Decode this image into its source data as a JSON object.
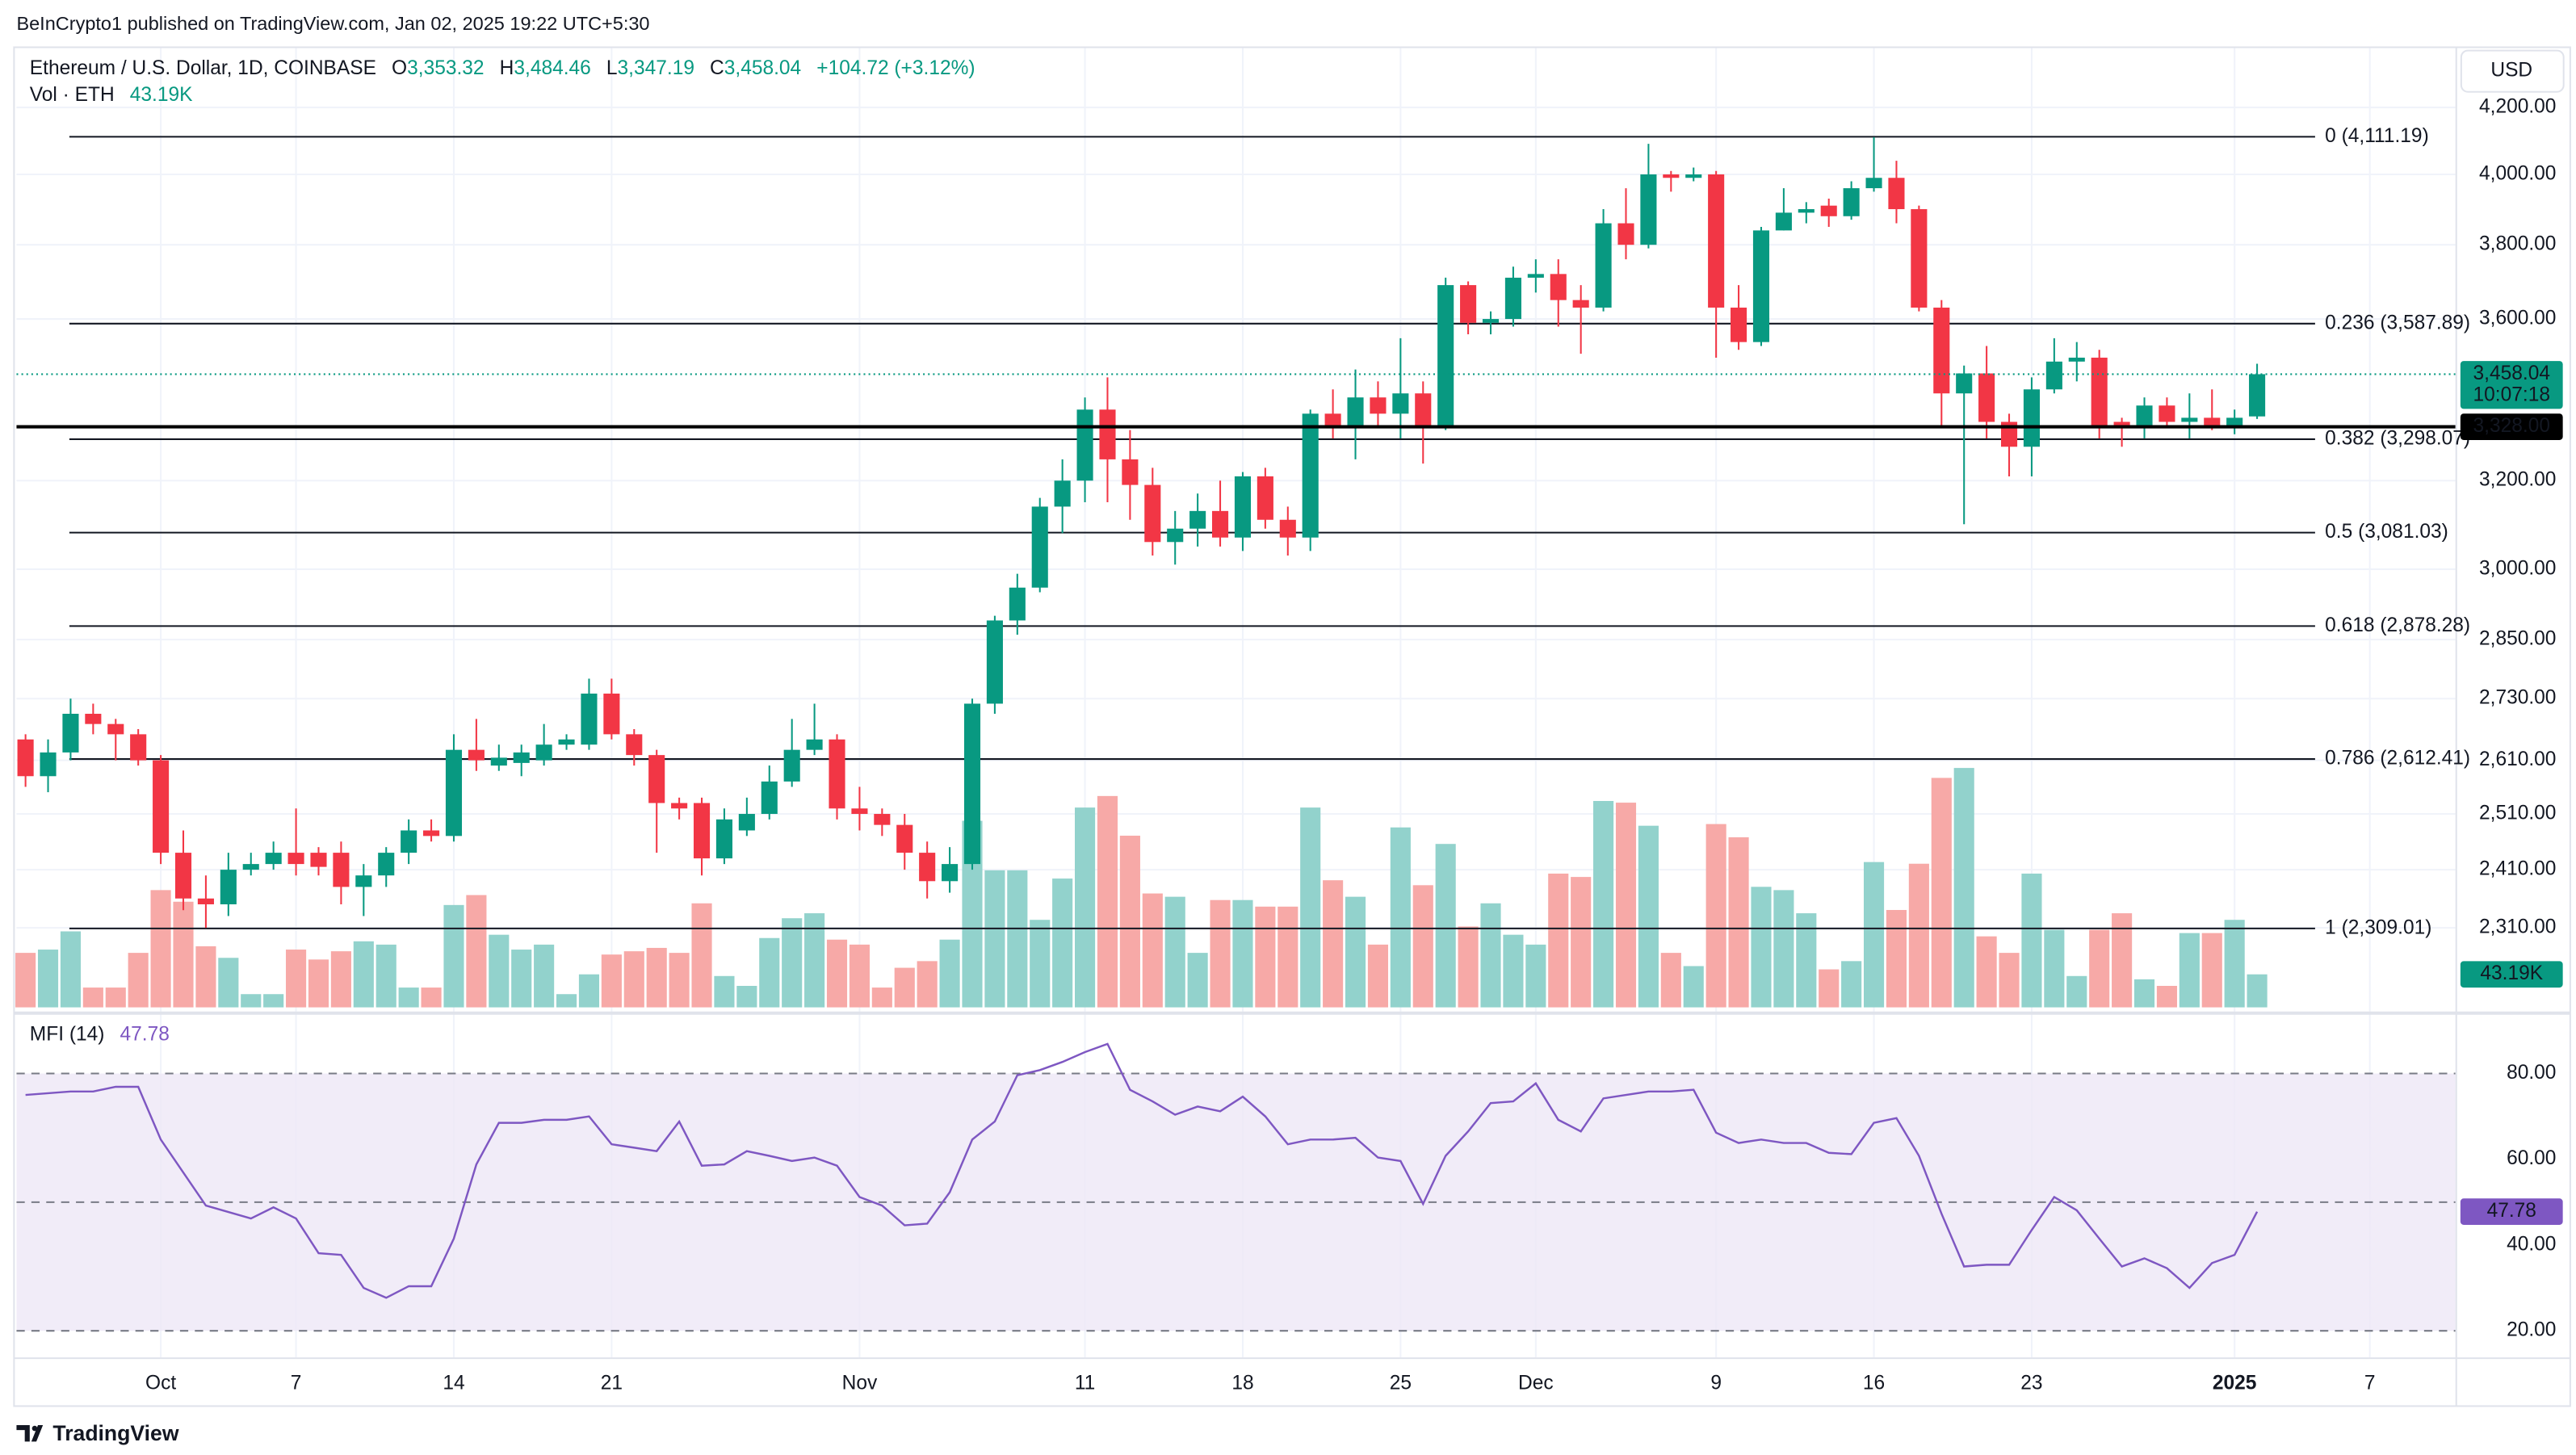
{
  "header": {
    "attribution": "BeInCrypto1 published on TradingView.com, Jan 02, 2025 19:22 UTC+5:30",
    "currency": "USD"
  },
  "chart_data": [
    {
      "type": "candlestick",
      "title": "Ethereum / U.S. Dollar, 1D, COINBASE",
      "legend": {
        "o": "O",
        "open": "3,353.32",
        "h": "H",
        "high": "3,484.46",
        "l": "L",
        "low": "3,347.19",
        "c": "C",
        "close": "3,458.04",
        "change": "+104.72 (+3.12%)"
      },
      "up_color": "#089981",
      "down_color": "#f23645",
      "log_scale": true,
      "grid": true,
      "x": [
        0,
        1,
        2,
        3,
        4,
        5,
        6,
        7,
        8,
        9,
        10,
        11,
        12,
        13,
        14,
        15,
        16,
        17,
        18,
        19,
        20,
        21,
        22,
        23,
        24,
        25,
        26,
        27,
        28,
        29,
        30,
        31,
        32,
        33,
        34,
        35,
        36,
        37,
        38,
        39,
        40,
        41,
        42,
        43,
        44,
        45,
        46,
        47,
        48,
        49,
        50,
        51,
        52,
        53,
        54,
        55,
        56,
        57,
        58,
        59,
        60,
        61,
        62,
        63,
        64,
        65,
        66,
        67,
        68,
        69,
        70,
        71,
        72,
        73,
        74,
        75,
        76,
        77,
        78,
        79,
        80,
        81,
        82,
        83,
        84,
        85,
        86,
        87,
        88,
        89,
        90,
        91,
        92,
        93,
        94,
        95,
        96,
        97,
        98,
        99
      ],
      "open": [
        2650,
        2580,
        2625,
        2700,
        2680,
        2660,
        2610,
        2440,
        2360,
        2350,
        2410,
        2420,
        2440,
        2440,
        2440,
        2380,
        2400,
        2440,
        2480,
        2470,
        2630,
        2600,
        2605,
        2610,
        2640,
        2640,
        2740,
        2660,
        2620,
        2530,
        2530,
        2430,
        2480,
        2510,
        2570,
        2630,
        2650,
        2520,
        2510,
        2490,
        2440,
        2390,
        2420,
        2720,
        2890,
        2960,
        3140,
        3200,
        3370,
        3250,
        3190,
        3060,
        3090,
        3130,
        3070,
        3210,
        3110,
        3070,
        3360,
        3330,
        3400,
        3360,
        3410,
        3330,
        3690,
        3590,
        3600,
        3710,
        3720,
        3650,
        3630,
        3860,
        3800,
        4000,
        3990,
        4000,
        3630,
        3540,
        3840,
        3890,
        3910,
        3880,
        3960,
        3990,
        3900,
        3630,
        3410,
        3460,
        3340,
        3280,
        3420,
        3490,
        3500,
        3340,
        3330,
        3380,
        3340,
        3350,
        3330,
        3353.32
      ],
      "high": [
        2660,
        2650,
        2730,
        2720,
        2690,
        2670,
        2620,
        2480,
        2400,
        2440,
        2440,
        2460,
        2520,
        2450,
        2460,
        2420,
        2450,
        2500,
        2500,
        2660,
        2690,
        2640,
        2640,
        2680,
        2660,
        2770,
        2770,
        2670,
        2630,
        2540,
        2540,
        2520,
        2540,
        2600,
        2690,
        2720,
        2660,
        2560,
        2520,
        2510,
        2460,
        2450,
        2730,
        2900,
        2990,
        3160,
        3250,
        3400,
        3450,
        3320,
        3230,
        3130,
        3170,
        3200,
        3220,
        3230,
        3140,
        3370,
        3420,
        3470,
        3440,
        3550,
        3440,
        3710,
        3700,
        3620,
        3740,
        3760,
        3760,
        3690,
        3900,
        3960,
        4090,
        4010,
        4020,
        4010,
        3690,
        3850,
        3960,
        3920,
        3930,
        3980,
        4110,
        4040,
        3910,
        3650,
        3480,
        3530,
        3360,
        3450,
        3550,
        3540,
        3520,
        3350,
        3400,
        3400,
        3410,
        3420,
        3370,
        3484.46
      ],
      "low": [
        2560,
        2550,
        2610,
        2660,
        2610,
        2600,
        2420,
        2340,
        2310,
        2330,
        2400,
        2410,
        2400,
        2400,
        2350,
        2330,
        2380,
        2420,
        2460,
        2460,
        2590,
        2590,
        2580,
        2600,
        2630,
        2630,
        2650,
        2600,
        2440,
        2500,
        2400,
        2420,
        2470,
        2500,
        2560,
        2620,
        2500,
        2480,
        2470,
        2410,
        2360,
        2370,
        2410,
        2700,
        2860,
        2950,
        3080,
        3150,
        3150,
        3110,
        3030,
        3010,
        3050,
        3050,
        3040,
        3090,
        3030,
        3040,
        3300,
        3250,
        3330,
        3300,
        3240,
        3320,
        3560,
        3560,
        3580,
        3670,
        3580,
        3510,
        3620,
        3760,
        3790,
        3950,
        3980,
        3500,
        3520,
        3530,
        3840,
        3860,
        3850,
        3870,
        3950,
        3860,
        3620,
        3330,
        3100,
        3300,
        3210,
        3210,
        3410,
        3440,
        3300,
        3280,
        3300,
        3330,
        3300,
        3320,
        3310,
        3347.19
      ],
      "close": [
        2580,
        2625,
        2700,
        2680,
        2660,
        2610,
        2440,
        2360,
        2350,
        2410,
        2420,
        2440,
        2420,
        2415,
        2380,
        2400,
        2440,
        2480,
        2470,
        2630,
        2610,
        2615,
        2625,
        2640,
        2650,
        2740,
        2660,
        2620,
        2530,
        2520,
        2430,
        2500,
        2510,
        2570,
        2630,
        2650,
        2520,
        2510,
        2490,
        2440,
        2390,
        2420,
        2720,
        2890,
        2960,
        3140,
        3200,
        3370,
        3250,
        3190,
        3060,
        3090,
        3130,
        3070,
        3210,
        3110,
        3070,
        3360,
        3330,
        3400,
        3360,
        3410,
        3330,
        3690,
        3590,
        3600,
        3710,
        3720,
        3650,
        3630,
        3860,
        3800,
        4000,
        3990,
        4000,
        3630,
        3540,
        3840,
        3890,
        3900,
        3880,
        3960,
        3990,
        3900,
        3630,
        3410,
        3460,
        3340,
        3280,
        3420,
        3490,
        3500,
        3330,
        3330,
        3380,
        3340,
        3350,
        3330,
        3350,
        3458.04
      ],
      "xlim": [
        -0.4,
        107.8
      ],
      "xticks": [
        {
          "value": 6,
          "label": "Oct"
        },
        {
          "value": 12,
          "label": "7"
        },
        {
          "value": 19,
          "label": "14"
        },
        {
          "value": 26,
          "label": "21"
        },
        {
          "value": 37,
          "label": "Nov"
        },
        {
          "value": 47,
          "label": "11"
        },
        {
          "value": 54,
          "label": "18"
        },
        {
          "value": 61,
          "label": "25"
        },
        {
          "value": 67,
          "label": "Dec"
        },
        {
          "value": 75,
          "label": "9"
        },
        {
          "value": 82,
          "label": "16"
        },
        {
          "value": 89,
          "label": "23"
        },
        {
          "value": 98,
          "label": "2025"
        },
        {
          "value": 104,
          "label": "7"
        }
      ],
      "ylim": [
        2180,
        4391
      ],
      "yticks": [
        {
          "value": 4200,
          "label": "4,200.00"
        },
        {
          "value": 4000,
          "label": "4,000.00"
        },
        {
          "value": 3800,
          "label": "3,800.00"
        },
        {
          "value": 3600,
          "label": "3,600.00"
        },
        {
          "value": 3200,
          "label": "3,200.00"
        },
        {
          "value": 3000,
          "label": "3,000.00"
        },
        {
          "value": 2850,
          "label": "2,850.00"
        },
        {
          "value": 2730,
          "label": "2,730.00"
        },
        {
          "value": 2610,
          "label": "2,610.00"
        },
        {
          "value": 2510,
          "label": "2,510.00"
        },
        {
          "value": 2410,
          "label": "2,410.00"
        },
        {
          "value": 2310,
          "label": "2,310.00"
        }
      ],
      "levels": [
        {
          "value": 4111.19,
          "label": "0 (4,111.19)"
        },
        {
          "value": 3587.89,
          "label": "0.236 (3,587.89)"
        },
        {
          "value": 3298.07,
          "label": "0.382 (3,298.07)"
        },
        {
          "value": 3081.03,
          "label": "0.5 (3,081.03)"
        },
        {
          "value": 2878.28,
          "label": "0.618 (2,878.28)"
        },
        {
          "value": 2612.41,
          "label": "0.786 (2,612.41)"
        },
        {
          "value": 2309.01,
          "label": "1 (2,309.01)"
        }
      ],
      "price_line": {
        "value": 3328,
        "label": "3,328.00",
        "color": "#000000"
      },
      "last_price": {
        "value": 3458.04,
        "label": "3,458.04",
        "countdown": "10:07:18"
      }
    },
    {
      "type": "bar",
      "name": "Vol · ETH",
      "up_color": "#92d2cc",
      "down_color": "#f7a9a7",
      "last_label": "43.19K",
      "values": [
        71.3,
        75.6,
        99.4,
        25.9,
        25.9,
        71.3,
        153.4,
        138.2,
        79.9,
        64.8,
        17.3,
        17.3,
        75.6,
        62.6,
        73.4,
        86.4,
        82.1,
        25.9,
        25.9,
        133.9,
        146.9,
        95.0,
        75.6,
        82.1,
        17.3,
        43.2,
        69.1,
        73.4,
        77.8,
        71.3,
        136.1,
        41.0,
        28.1,
        90.7,
        116.6,
        123.1,
        88.6,
        82.1,
        25.9,
        51.8,
        60.5,
        88.6,
        244.1,
        179.3,
        179.3,
        114.5,
        168.5,
        261.4,
        276.5,
        224.6,
        149.0,
        144.7,
        71.3,
        140.4,
        140.4,
        131.8,
        131.8,
        261.4,
        166.3,
        144.7,
        82.1,
        235.4,
        159.8,
        213.8,
        105.8,
        136.1,
        95.0,
        82.1,
        175.0,
        170.6,
        270.0,
        267.8,
        237.6,
        71.3,
        54.0,
        239.8,
        222.5,
        157.7,
        153.4,
        123.1,
        49.7,
        60.5,
        190.1,
        127.4,
        187.9,
        300.2,
        313.2,
        92.9,
        71.3,
        175.0,
        101.5,
        41.0,
        101.5,
        123.1,
        36.7,
        28.1,
        97.2,
        97.2,
        114.5,
        43.19
      ]
    },
    {
      "type": "line",
      "name": "MFI (14)",
      "color": "#7e57c2",
      "band_fill": "#ede7f6",
      "bands": [
        80,
        50,
        20
      ],
      "ylim": [
        13.8,
        93.5
      ],
      "yticks": [
        {
          "value": 80,
          "label": "80.00"
        },
        {
          "value": 60,
          "label": "60.00"
        },
        {
          "value": 40,
          "label": "40.00"
        },
        {
          "value": 20,
          "label": "20.00"
        }
      ],
      "values": [
        75.0,
        75.4,
        75.8,
        75.8,
        76.9,
        76.9,
        64.6,
        56.9,
        49.2,
        47.7,
        46.2,
        48.8,
        46.2,
        38.1,
        37.7,
        30.0,
        27.7,
        30.4,
        30.4,
        41.5,
        58.8,
        68.5,
        68.5,
        69.2,
        69.2,
        70.0,
        63.5,
        62.7,
        61.9,
        68.8,
        58.5,
        58.8,
        61.9,
        60.8,
        59.6,
        60.4,
        58.5,
        51.2,
        49.2,
        44.6,
        45.0,
        52.3,
        64.6,
        68.8,
        79.6,
        80.8,
        82.7,
        85.0,
        86.9,
        76.2,
        73.5,
        70.4,
        72.3,
        71.2,
        74.6,
        70.0,
        63.5,
        64.6,
        64.6,
        65.0,
        60.4,
        59.6,
        49.6,
        60.8,
        66.5,
        73.1,
        73.5,
        77.7,
        69.2,
        66.5,
        74.2,
        75.0,
        75.8,
        75.8,
        76.2,
        66.2,
        63.8,
        64.6,
        63.8,
        63.8,
        61.5,
        61.2,
        68.5,
        69.6,
        60.8,
        47.3,
        35.0,
        35.4,
        35.4,
        43.5,
        51.2,
        48.1,
        41.5,
        35.0,
        36.9,
        34.6,
        30.0,
        35.8,
        37.7,
        47.78
      ]
    }
  ],
  "footer": {
    "brand": "TradingView"
  }
}
